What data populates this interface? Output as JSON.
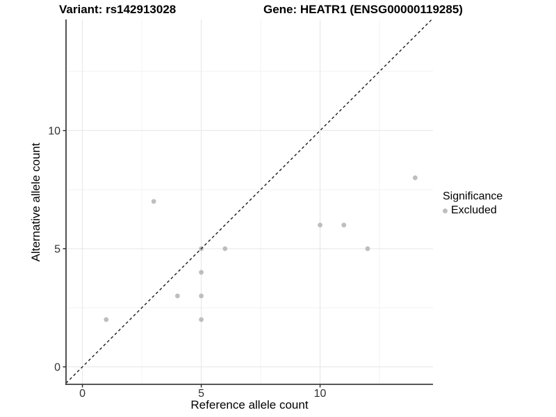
{
  "chart_data": {
    "type": "scatter",
    "titles": {
      "left": "Variant: rs142913028",
      "right": "Gene: HEATR1 (ENSG00000119285)"
    },
    "xlabel": "Reference allele count",
    "ylabel": "Alternative allele count",
    "xlim": [
      -0.69,
      14.75
    ],
    "ylim": [
      -0.74,
      14.7
    ],
    "x_ticks": {
      "major": [
        0,
        5,
        10
      ],
      "minor": [
        2.5,
        7.5,
        12.5
      ]
    },
    "y_ticks": {
      "major": [
        0,
        5,
        10
      ],
      "minor": [
        2.5,
        7.5,
        12.5
      ]
    },
    "grid": "major+minor on white background",
    "series": [
      {
        "name": "Excluded",
        "color": "#bebebe",
        "points": [
          [
            1,
            2
          ],
          [
            3,
            7
          ],
          [
            4,
            3
          ],
          [
            5,
            2
          ],
          [
            5,
            3
          ],
          [
            5,
            4
          ],
          [
            5,
            5
          ],
          [
            6,
            5
          ],
          [
            10,
            6
          ],
          [
            11,
            6
          ],
          [
            12,
            5
          ],
          [
            14,
            8
          ]
        ]
      }
    ],
    "reference_line": {
      "kind": "identity y=x",
      "style": "dashed",
      "color": "#1a1a1a"
    },
    "legend": {
      "position": "right",
      "title": "Significance",
      "entries": [
        {
          "label": "Excluded",
          "color": "#bebebe"
        }
      ]
    },
    "point_radius": 3.4
  },
  "style_colors": {
    "grid_major": "#e5e5e5",
    "grid_minor": "#f2f2f2",
    "axis_line": "#3f3f3f",
    "tick_mark": "#333333",
    "tick_label": "#303030"
  }
}
